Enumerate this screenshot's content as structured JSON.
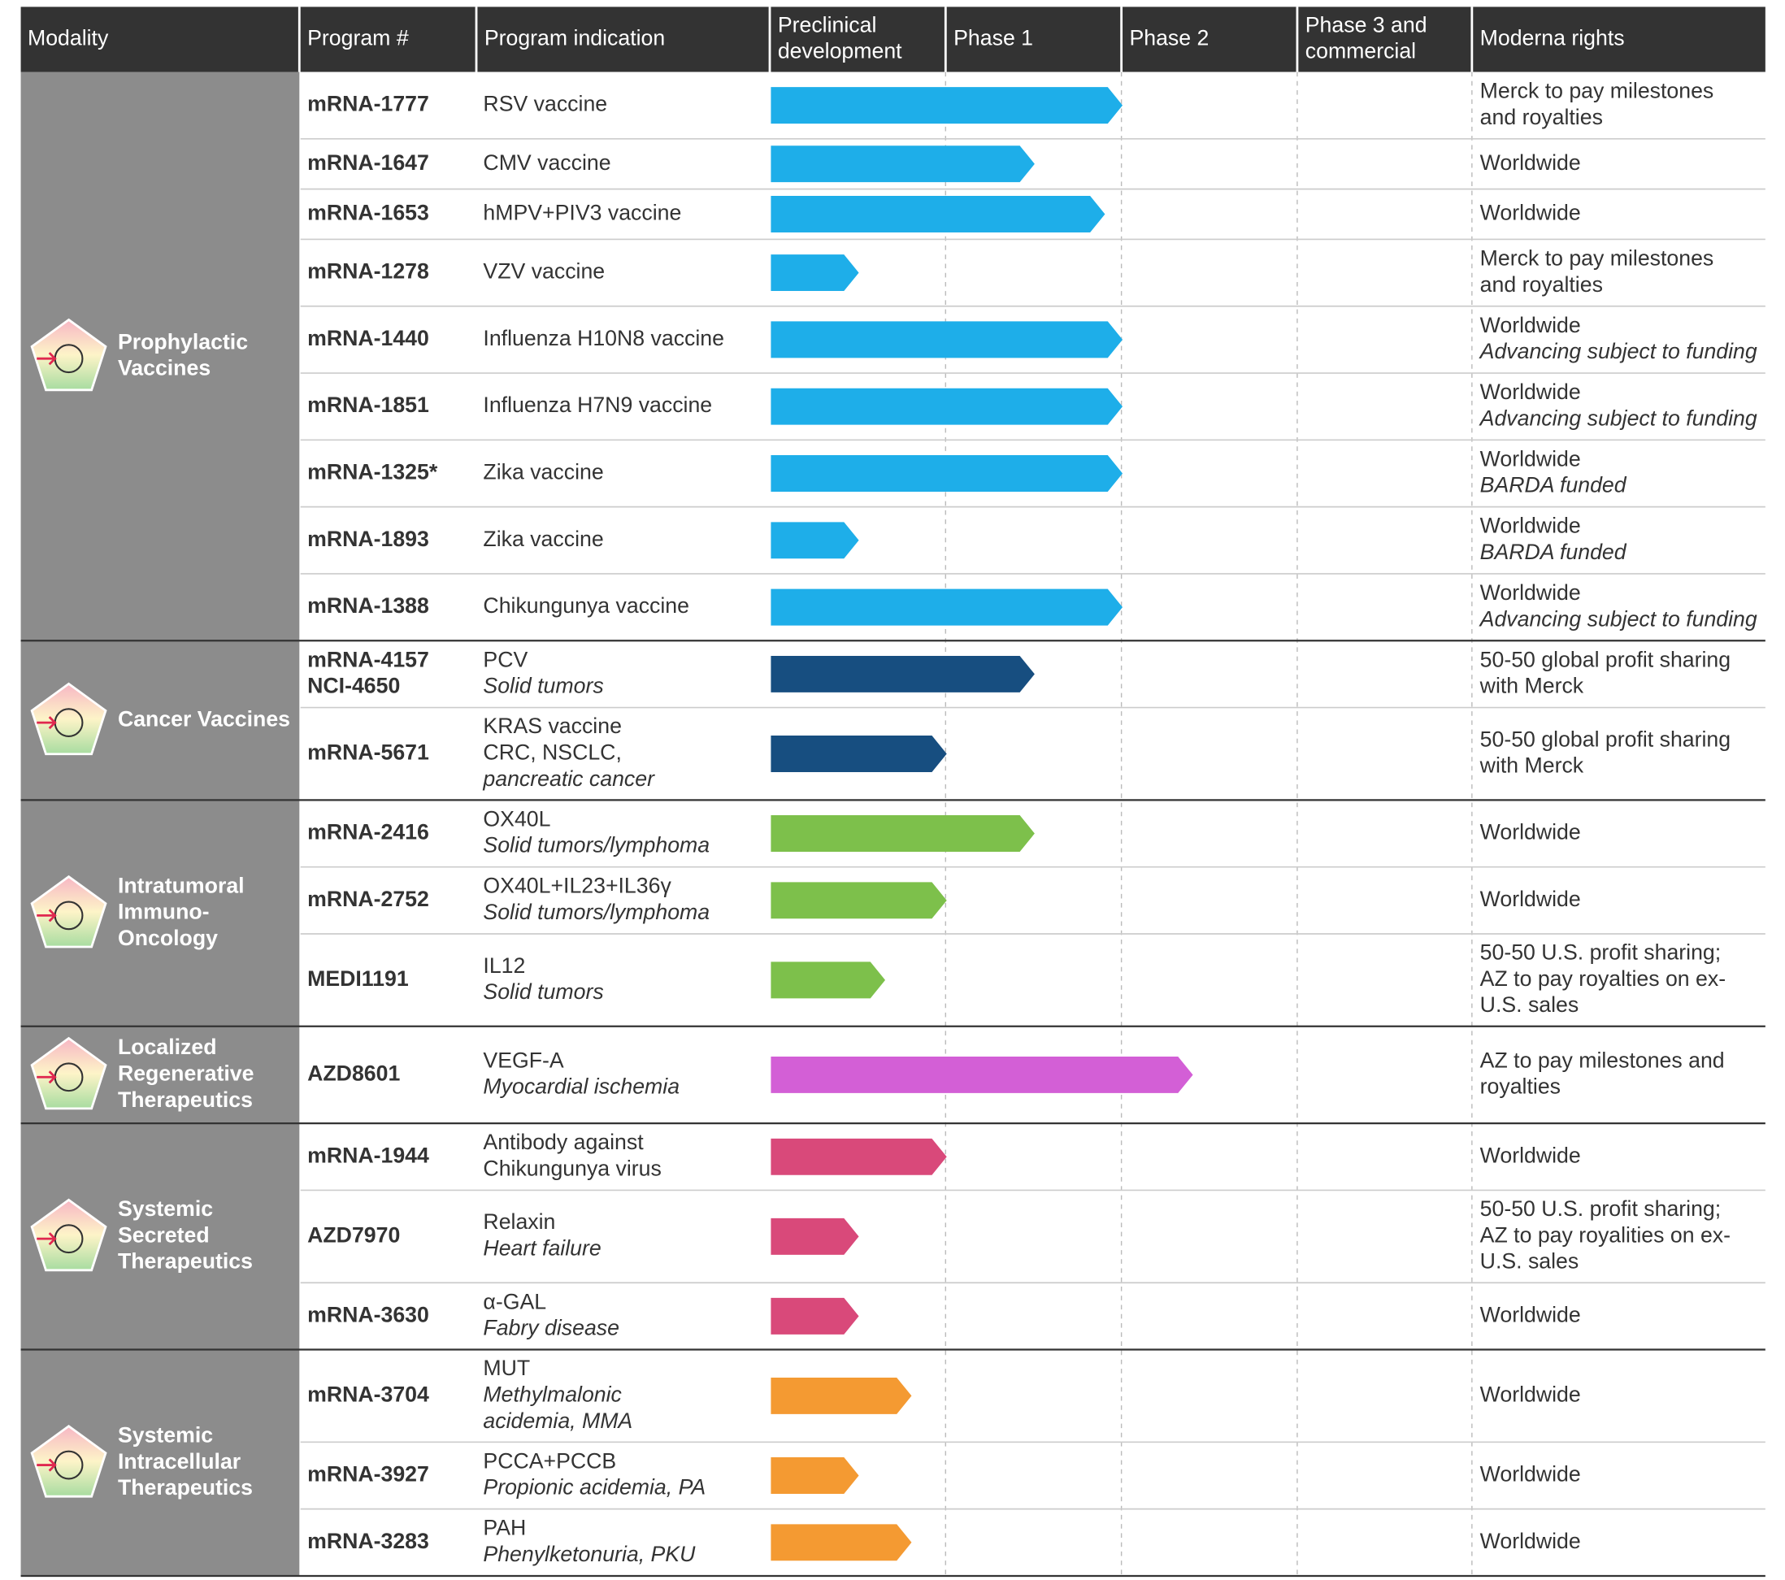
{
  "columns": [
    [
      "Modality"
    ],
    [
      "Program #"
    ],
    [
      "Program indication"
    ],
    [
      "Preclinical",
      "development"
    ],
    [
      "Phase 1"
    ],
    [
      "Phase 2"
    ],
    [
      "Phase 3 and",
      "commercial"
    ],
    [
      "Moderna rights"
    ]
  ],
  "groups": [
    {
      "modality": [
        "Prophylactic",
        "Vaccines"
      ],
      "color": "#1eaee9",
      "rows": [
        {
          "program": [
            "mRNA-1777"
          ],
          "indication": [
            "RSV vaccine"
          ],
          "detail": [],
          "progress": 2.0,
          "rights": [
            "Merck to pay milestones",
            "and royalties"
          ],
          "note": []
        },
        {
          "program": [
            "mRNA-1647"
          ],
          "indication": [
            "CMV vaccine"
          ],
          "detail": [],
          "progress": 1.5,
          "rights": [
            "Worldwide"
          ],
          "note": []
        },
        {
          "program": [
            "mRNA-1653"
          ],
          "indication": [
            "hMPV+PIV3 vaccine"
          ],
          "detail": [],
          "progress": 1.9,
          "rights": [
            "Worldwide"
          ],
          "note": []
        },
        {
          "program": [
            "mRNA-1278"
          ],
          "indication": [
            "VZV vaccine"
          ],
          "detail": [],
          "progress": 0.5,
          "rights": [
            "Merck to pay milestones",
            "and royalties"
          ],
          "note": []
        },
        {
          "program": [
            "mRNA-1440"
          ],
          "indication": [
            "Influenza H10N8 vaccine"
          ],
          "detail": [],
          "progress": 2.0,
          "rights": [
            "Worldwide"
          ],
          "note": [
            "Advancing subject to funding"
          ]
        },
        {
          "program": [
            "mRNA-1851"
          ],
          "indication": [
            "Influenza H7N9 vaccine"
          ],
          "detail": [],
          "progress": 2.0,
          "rights": [
            "Worldwide"
          ],
          "note": [
            "Advancing subject to funding"
          ]
        },
        {
          "program": [
            "mRNA-1325*"
          ],
          "indication": [
            "Zika vaccine"
          ],
          "detail": [],
          "progress": 2.0,
          "rights": [
            "Worldwide"
          ],
          "note": [
            "BARDA funded"
          ]
        },
        {
          "program": [
            "mRNA-1893"
          ],
          "indication": [
            "Zika vaccine"
          ],
          "detail": [],
          "progress": 0.5,
          "rights": [
            "Worldwide"
          ],
          "note": [
            "BARDA funded"
          ]
        },
        {
          "program": [
            "mRNA-1388"
          ],
          "indication": [
            "Chikungunya vaccine"
          ],
          "detail": [],
          "progress": 2.0,
          "rights": [
            "Worldwide"
          ],
          "note": [
            "Advancing subject to funding"
          ]
        }
      ]
    },
    {
      "modality": [
        "Cancer Vaccines"
      ],
      "color": "#174e80",
      "rows": [
        {
          "program": [
            "mRNA-4157",
            "NCI-4650"
          ],
          "indication": [
            "PCV"
          ],
          "detail": [
            "Solid tumors"
          ],
          "progress": 1.5,
          "rights": [
            "50-50 global profit sharing",
            "with Merck"
          ],
          "note": []
        },
        {
          "program": [
            "mRNA-5671"
          ],
          "indication": [
            "KRAS vaccine",
            "CRC, NSCLC,"
          ],
          "detail": [
            "pancreatic cancer"
          ],
          "progress": 1.0,
          "rights": [
            "50-50 global profit sharing",
            "with Merck"
          ],
          "note": []
        }
      ]
    },
    {
      "modality": [
        "Intratumoral",
        "Immuno-",
        "Oncology"
      ],
      "color": "#7dc04b",
      "rows": [
        {
          "program": [
            "mRNA-2416"
          ],
          "indication": [
            "OX40L"
          ],
          "detail": [
            "Solid tumors/lymphoma"
          ],
          "progress": 1.5,
          "rights": [
            "Worldwide"
          ],
          "note": []
        },
        {
          "program": [
            "mRNA-2752"
          ],
          "indication": [
            "OX40L+IL23+IL36γ"
          ],
          "detail": [
            "Solid tumors/lymphoma"
          ],
          "progress": 1.0,
          "rights": [
            "Worldwide"
          ],
          "note": []
        },
        {
          "program": [
            "MEDI1191"
          ],
          "indication": [
            "IL12"
          ],
          "detail": [
            "Solid tumors"
          ],
          "progress": 0.65,
          "rights": [
            "50-50 U.S. profit sharing;",
            "AZ to pay royalties on ex-",
            "U.S. sales"
          ],
          "note": []
        }
      ]
    },
    {
      "modality": [
        "Localized",
        "Regenerative",
        "Therapeutics"
      ],
      "color": "#d35fd6",
      "rows": [
        {
          "program": [
            "AZD8601"
          ],
          "indication": [
            "VEGF-A"
          ],
          "detail": [
            "Myocardial ischemia"
          ],
          "progress": 2.4,
          "rights": [
            "AZ to pay milestones and",
            "royalties"
          ],
          "note": []
        }
      ]
    },
    {
      "modality": [
        "Systemic",
        "Secreted",
        "Therapeutics"
      ],
      "color": "#d9497a",
      "rows": [
        {
          "program": [
            "mRNA-1944"
          ],
          "indication": [
            "Antibody against",
            "Chikungunya virus"
          ],
          "detail": [],
          "progress": 1.0,
          "rights": [
            "Worldwide"
          ],
          "note": []
        },
        {
          "program": [
            "AZD7970"
          ],
          "indication": [
            "Relaxin"
          ],
          "detail": [
            "Heart failure"
          ],
          "progress": 0.5,
          "rights": [
            "50-50 U.S. profit sharing;",
            "AZ to pay royalities on ex-",
            "U.S. sales"
          ],
          "note": []
        },
        {
          "program": [
            "mRNA-3630"
          ],
          "indication": [
            "α-GAL"
          ],
          "detail": [
            "Fabry disease"
          ],
          "progress": 0.5,
          "rights": [
            "Worldwide"
          ],
          "note": []
        }
      ]
    },
    {
      "modality": [
        "Systemic",
        "Intracellular",
        "Therapeutics"
      ],
      "color": "#f49a32",
      "rows": [
        {
          "program": [
            "mRNA-3704"
          ],
          "indication": [
            "MUT"
          ],
          "detail": [
            "Methylmalonic",
            "acidemia, MMA"
          ],
          "progress": 0.8,
          "rights": [
            "Worldwide"
          ],
          "note": []
        },
        {
          "program": [
            "mRNA-3927"
          ],
          "indication": [
            "PCCA+PCCB"
          ],
          "detail": [
            "Propionic acidemia, PA"
          ],
          "progress": 0.5,
          "rights": [
            "Worldwide"
          ],
          "note": []
        },
        {
          "program": [
            "mRNA-3283"
          ],
          "indication": [
            "PAH"
          ],
          "detail": [
            "Phenylketonuria, PKU"
          ],
          "progress": 0.8,
          "rights": [
            "Worldwide"
          ],
          "note": []
        }
      ]
    }
  ]
}
